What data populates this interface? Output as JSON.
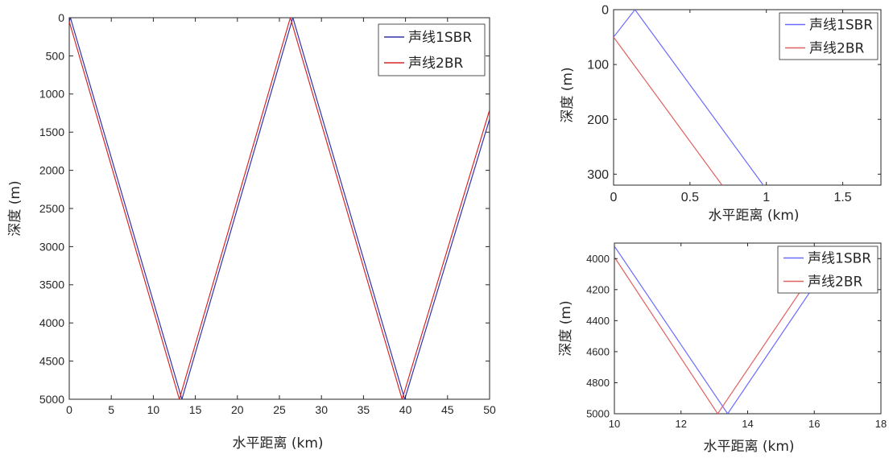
{
  "chart_data": [
    {
      "type": "line",
      "xlabel": "水平距离 (km)",
      "ylabel": "深度 (m)",
      "xlim": [
        0,
        50
      ],
      "ylim": [
        0,
        5000
      ],
      "y_reversed": true,
      "grid": false,
      "legend_position": "top-right",
      "xticks": [
        0,
        5,
        10,
        15,
        20,
        25,
        30,
        35,
        40,
        45,
        50
      ],
      "yticks": [
        0,
        500,
        1000,
        1500,
        2000,
        2500,
        3000,
        3500,
        4000,
        4500,
        5000
      ],
      "series": [
        {
          "name": "声线1SBR",
          "color": "#3333aa",
          "x": [
            0,
            0.14,
            13.4,
            26.6,
            39.9,
            50
          ],
          "y": [
            50,
            0,
            5000,
            0,
            5000,
            1330
          ]
        },
        {
          "name": "声线2BR",
          "color": "#d62728",
          "x": [
            0,
            13.1,
            26.3,
            39.6,
            50
          ],
          "y": [
            50,
            5000,
            0,
            5000,
            1210
          ]
        }
      ]
    },
    {
      "type": "line",
      "xlabel": "水平距离 (km)",
      "ylabel": "深度 (m)",
      "xlim": [
        0,
        1.75
      ],
      "ylim": [
        0,
        320
      ],
      "y_reversed": true,
      "grid": false,
      "legend_position": "top-right",
      "xticks": [
        0,
        0.5,
        1,
        1.5
      ],
      "yticks": [
        0,
        100,
        200,
        300
      ],
      "series": [
        {
          "name": "声线1SBR",
          "color": "#6a6aff",
          "x": [
            0,
            0.14,
            0.98
          ],
          "y": [
            50,
            0,
            320
          ]
        },
        {
          "name": "声线2BR",
          "color": "#e06060",
          "x": [
            0,
            0.71
          ],
          "y": [
            50,
            320
          ]
        }
      ]
    },
    {
      "type": "line",
      "xlabel": "水平距离 (km)",
      "ylabel": "深度 (m)",
      "xlim": [
        10,
        18
      ],
      "ylim": [
        3900,
        5000
      ],
      "y_reversed": true,
      "grid": false,
      "legend_position": "top-right",
      "xticks": [
        10,
        12,
        14,
        16,
        18
      ],
      "yticks": [
        4000,
        4200,
        4400,
        4600,
        4800,
        5000
      ],
      "series": [
        {
          "name": "声线1SBR",
          "color": "#6a6aff",
          "x": [
            10,
            13.4,
            16.8
          ],
          "y": [
            3920,
            5000,
            3920
          ]
        },
        {
          "name": "声线2BR",
          "color": "#e06060",
          "x": [
            10,
            13.1,
            16.5
          ],
          "y": [
            3990,
            5000,
            3920
          ]
        }
      ]
    }
  ]
}
